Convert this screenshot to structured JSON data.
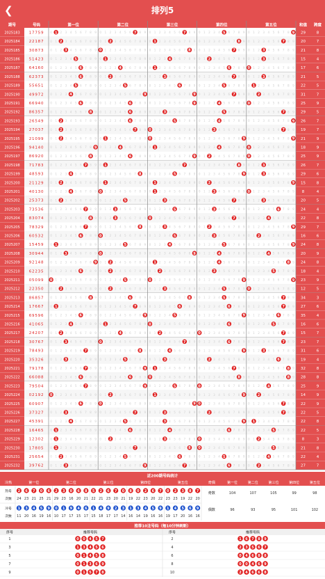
{
  "header": {
    "title": "排列5"
  },
  "table": {
    "col_issue": "期号",
    "col_num": "号码",
    "col_hezhi": "和值",
    "col_kuadu": "跨度",
    "positions": [
      "第一位",
      "第二位",
      "第三位",
      "第四位",
      "第五位"
    ],
    "digits": [
      "0",
      "1",
      "2",
      "3",
      "4",
      "5",
      "6",
      "7",
      "8",
      "9"
    ]
  },
  "draws": [
    {
      "issue": "2025183",
      "number": "17759",
      "sum": 29,
      "span": 8
    },
    {
      "issue": "2025184",
      "number": "22187",
      "sum": 20,
      "span": 7
    },
    {
      "issue": "2025185",
      "number": "30873",
      "sum": 21,
      "span": 8
    },
    {
      "issue": "2025186",
      "number": "51423",
      "sum": 15,
      "span": 4
    },
    {
      "issue": "2025187",
      "number": "64160",
      "sum": 17,
      "span": 6
    },
    {
      "issue": "2025188",
      "number": "62373",
      "sum": 21,
      "span": 5
    },
    {
      "issue": "2025189",
      "number": "55651",
      "sum": 22,
      "span": 5
    },
    {
      "issue": "2025190",
      "number": "49972",
      "sum": 31,
      "span": 7
    },
    {
      "issue": "2025191",
      "number": "66940",
      "sum": 25,
      "span": 9
    },
    {
      "issue": "2025192",
      "number": "86357",
      "sum": 29,
      "span": 5
    },
    {
      "issue": "2025193",
      "number": "26549",
      "sum": 26,
      "span": 7
    },
    {
      "issue": "2025194",
      "number": "27037",
      "sum": 19,
      "span": 7
    },
    {
      "issue": "2025195",
      "number": "21099",
      "sum": 21,
      "span": 9
    },
    {
      "issue": "2025196",
      "number": "94140",
      "sum": 18,
      "span": 9
    },
    {
      "issue": "2025197",
      "number": "86920",
      "sum": 25,
      "span": 9
    },
    {
      "issue": "2025198",
      "number": "71783",
      "sum": 26,
      "span": 7
    },
    {
      "issue": "2025199",
      "number": "48593",
      "sum": 29,
      "span": 6
    },
    {
      "issue": "2025200",
      "number": "21129",
      "sum": 15,
      "span": 8
    },
    {
      "issue": "2025201",
      "number": "40130",
      "sum": 8,
      "span": 4
    },
    {
      "issue": "2025202",
      "number": "25373",
      "sum": 20,
      "span": 5
    },
    {
      "issue": "2025203",
      "number": "73536",
      "sum": 24,
      "span": 4
    },
    {
      "issue": "2025204",
      "number": "83074",
      "sum": 22,
      "span": 8
    },
    {
      "issue": "2025205",
      "number": "78329",
      "sum": 29,
      "span": 7
    },
    {
      "issue": "2025206",
      "number": "60532",
      "sum": 16,
      "span": 6
    },
    {
      "issue": "2025207",
      "number": "15459",
      "sum": 24,
      "span": 8
    },
    {
      "issue": "2025208",
      "number": "30944",
      "sum": 20,
      "span": 9
    },
    {
      "issue": "2025209",
      "number": "92148",
      "sum": 24,
      "span": 8
    },
    {
      "issue": "2025210",
      "number": "62235",
      "sum": 18,
      "span": 4
    },
    {
      "issue": "2025211",
      "number": "05099",
      "sum": 23,
      "span": 9
    },
    {
      "issue": "2025212",
      "number": "22350",
      "sum": 12,
      "span": 5
    },
    {
      "issue": "2025213",
      "number": "86857",
      "sum": 34,
      "span": 3
    },
    {
      "issue": "2025214",
      "number": "17667",
      "sum": 27,
      "span": 6
    },
    {
      "issue": "2025215",
      "number": "69596",
      "sum": 35,
      "span": 4
    },
    {
      "issue": "2025216",
      "number": "41065",
      "sum": 16,
      "span": 6
    },
    {
      "issue": "2025217",
      "number": "24207",
      "sum": 15,
      "span": 7
    },
    {
      "issue": "2025218",
      "number": "30767",
      "sum": 23,
      "span": 7
    },
    {
      "issue": "2025219",
      "number": "78493",
      "sum": 31,
      "span": 6
    },
    {
      "issue": "2025220",
      "number": "35326",
      "sum": 19,
      "span": 4
    },
    {
      "issue": "2025221",
      "number": "79178",
      "sum": 32,
      "span": 8
    },
    {
      "issue": "2025222",
      "number": "66088",
      "sum": 28,
      "span": 8
    },
    {
      "issue": "2025223",
      "number": "79504",
      "sum": 25,
      "span": 9
    },
    {
      "issue": "2025224",
      "number": "02192",
      "sum": 14,
      "span": 9
    },
    {
      "issue": "2025225",
      "number": "60907",
      "sum": 22,
      "span": 9
    },
    {
      "issue": "2025226",
      "number": "37327",
      "sum": 22,
      "span": 5
    },
    {
      "issue": "2025227",
      "number": "45391",
      "sum": 22,
      "span": 8
    },
    {
      "issue": "2025228",
      "number": "16465",
      "sum": 22,
      "span": 5
    },
    {
      "issue": "2025229",
      "number": "12302",
      "sum": 8,
      "span": 3
    },
    {
      "issue": "2025230",
      "number": "17805",
      "sum": 21,
      "span": 8
    },
    {
      "issue": "2025231",
      "number": "25654",
      "sum": 22,
      "span": 4
    },
    {
      "issue": "2025232",
      "number": "39762",
      "sum": 27,
      "span": 7
    }
  ],
  "stats": {
    "title": "近200期号码统计",
    "rows_label": [
      "冷热",
      "热号",
      "冷号",
      "次数"
    ],
    "col_labels": [
      "第一位",
      "第二位",
      "第三位",
      "第四位",
      "第五位"
    ],
    "hot_label": "热号",
    "hot_count_label": "次数",
    "cold_label": "冷号",
    "cold_count_label": "次数",
    "hot_numbers": [
      [
        2,
        6,
        7,
        0,
        6
      ],
      [
        2,
        3,
        0,
        6,
        8
      ],
      [
        5,
        2,
        6,
        7,
        0
      ],
      [
        8,
        0,
        2,
        6,
        7
      ],
      [
        0,
        2,
        3,
        8,
        7
      ]
    ],
    "hot_counts": [
      [
        24,
        23,
        21,
        25,
        21
      ],
      [
        29,
        23,
        16,
        20,
        21
      ],
      [
        22,
        21,
        23,
        20,
        21
      ],
      [
        19,
        22,
        23,
        20,
        22
      ],
      [
        23,
        23,
        19,
        22,
        20
      ]
    ],
    "cold_numbers": [
      [
        1,
        3,
        4,
        5,
        9
      ],
      [
        0,
        1,
        9,
        4,
        6
      ],
      [
        1,
        4,
        9,
        2,
        3
      ],
      [
        1,
        3,
        4,
        5,
        9
      ],
      [
        1,
        4,
        5,
        6,
        9
      ]
    ],
    "cold_counts": [
      [
        11,
        20,
        16,
        19,
        16
      ],
      [
        10,
        17,
        17,
        15,
        17
      ],
      [
        15,
        18,
        17,
        17,
        14
      ],
      [
        16,
        14,
        19,
        16,
        16
      ],
      [
        19,
        17,
        20,
        16,
        16
      ]
    ],
    "oddeven": {
      "header": [
        "奇偶",
        "第一位",
        "第二位",
        "第三位",
        "第四位",
        "第五位"
      ],
      "rows": [
        {
          "label": "奇数",
          "values": [
            104,
            107,
            105,
            99,
            98
          ]
        },
        {
          "label": "偶数",
          "values": [
            96,
            93,
            95,
            101,
            102
          ]
        }
      ]
    }
  },
  "recommend": {
    "title": "推荐10注号码（每10分钟刷新）",
    "col_seq": "序号",
    "col_num": "推荐号码",
    "items": [
      {
        "seq": 1,
        "number": "00457"
      },
      {
        "seq": 2,
        "number": "16789"
      },
      {
        "seq": 3,
        "number": "13456"
      },
      {
        "seq": 4,
        "number": "23567"
      },
      {
        "seq": 5,
        "number": "01458"
      },
      {
        "seq": 6,
        "number": "04688"
      },
      {
        "seq": 7,
        "number": "01369"
      },
      {
        "seq": 8,
        "number": "00469"
      },
      {
        "seq": 9,
        "number": "01578"
      },
      {
        "seq": 10,
        "number": "24668"
      }
    ]
  },
  "colors": {
    "header": "#e34f4f",
    "accent": "#e02020",
    "row_alt": "#f6f6f6",
    "issue_bg": "#e34f4f",
    "grid": "#dddddd",
    "blue": "#1a4fcc"
  }
}
